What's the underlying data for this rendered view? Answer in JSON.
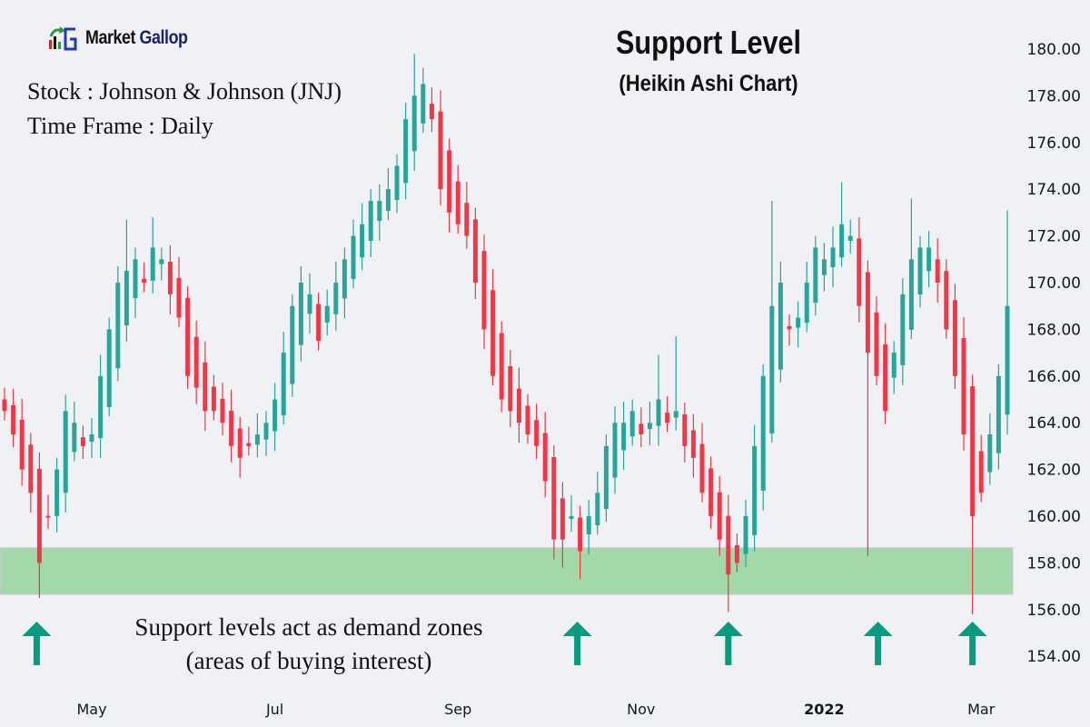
{
  "logo": {
    "brand_part1": "Market",
    "brand_part2": "Gallop"
  },
  "title": "Support Level",
  "subtitle": "(Heikin Ashi Chart)",
  "info": {
    "stock": "Stock : Johnson & Johnson (JNJ)",
    "timeframe": "Time Frame : Daily"
  },
  "annotation": {
    "line1": "Support levels act as demand zones",
    "line2": "(areas of buying interest)"
  },
  "colors": {
    "up": "#26a69a",
    "down": "#f23645",
    "support_zone": "#a3d8a8",
    "arrow": "#069c7f",
    "background": "#f0f1f5"
  },
  "chart_data": {
    "type": "candlestick",
    "style": "heikin-ashi",
    "ylim": [
      154,
      180.6
    ],
    "y_ticks": [
      "154.00",
      "156.00",
      "158.00",
      "160.00",
      "162.00",
      "164.00",
      "166.00",
      "168.00",
      "170.00",
      "172.00",
      "174.00",
      "176.00",
      "178.00",
      "180.00"
    ],
    "x_ticks": [
      {
        "label": "May",
        "index": 10
      },
      {
        "label": "Jul",
        "index": 31
      },
      {
        "label": "Sep",
        "index": 52
      },
      {
        "label": "Nov",
        "index": 73
      },
      {
        "label": "2022",
        "index": 94,
        "bold": true
      },
      {
        "label": "Mar",
        "index": 112
      }
    ],
    "grid": false,
    "closes": [
      164.5,
      163.5,
      162,
      161,
      158,
      160,
      162,
      164.5,
      164,
      163,
      163.5,
      166,
      168,
      170,
      170.5,
      171,
      170,
      171.5,
      171,
      169.5,
      168.5,
      166,
      165.5,
      164.5,
      164.5,
      164,
      163,
      162.5,
      163,
      163.5,
      164,
      165,
      167,
      169,
      170,
      169.5,
      167.5,
      169,
      170,
      171,
      172,
      172.5,
      173.5,
      173.5,
      174,
      175,
      177,
      178,
      178.5,
      177,
      174,
      173,
      172.5,
      172,
      170,
      168,
      166,
      165,
      164.5,
      164,
      163.5,
      163,
      161.5,
      159,
      159,
      160,
      158.5,
      160,
      161,
      163,
      164,
      164,
      164.5,
      163.5,
      164,
      165,
      164,
      164.5,
      163,
      162.5,
      161,
      160,
      159,
      157.5,
      158,
      160,
      163,
      166,
      169,
      170,
      168,
      168.5,
      170,
      171.5,
      171,
      171.5,
      172.5,
      172,
      169,
      167,
      166,
      164.5,
      167,
      169.5,
      171,
      171.5,
      171.5,
      170,
      168,
      166,
      163.5,
      160,
      161,
      163.5,
      166,
      169
    ],
    "notable_wicks": [
      {
        "index": 4,
        "low": 156.5
      },
      {
        "index": 14,
        "high": 172.7
      },
      {
        "index": 17,
        "high": 172.8
      },
      {
        "index": 47,
        "high": 179.8
      },
      {
        "index": 48,
        "high": 179.2
      },
      {
        "index": 64,
        "low": 157.8
      },
      {
        "index": 66,
        "low": 157.3
      },
      {
        "index": 75,
        "high": 166.9
      },
      {
        "index": 77,
        "high": 167.7
      },
      {
        "index": 83,
        "low": 155.9
      },
      {
        "index": 88,
        "high": 173.5
      },
      {
        "index": 96,
        "high": 174.3
      },
      {
        "index": 99,
        "low": 158.3
      },
      {
        "index": 104,
        "high": 173.6
      },
      {
        "index": 111,
        "low": 155.8
      },
      {
        "index": 115,
        "high": 173.1
      }
    ],
    "support_zone": {
      "low": 156.65,
      "high": 158.65
    },
    "buy_arrows_at_index": [
      4,
      66,
      83,
      101,
      111
    ]
  }
}
